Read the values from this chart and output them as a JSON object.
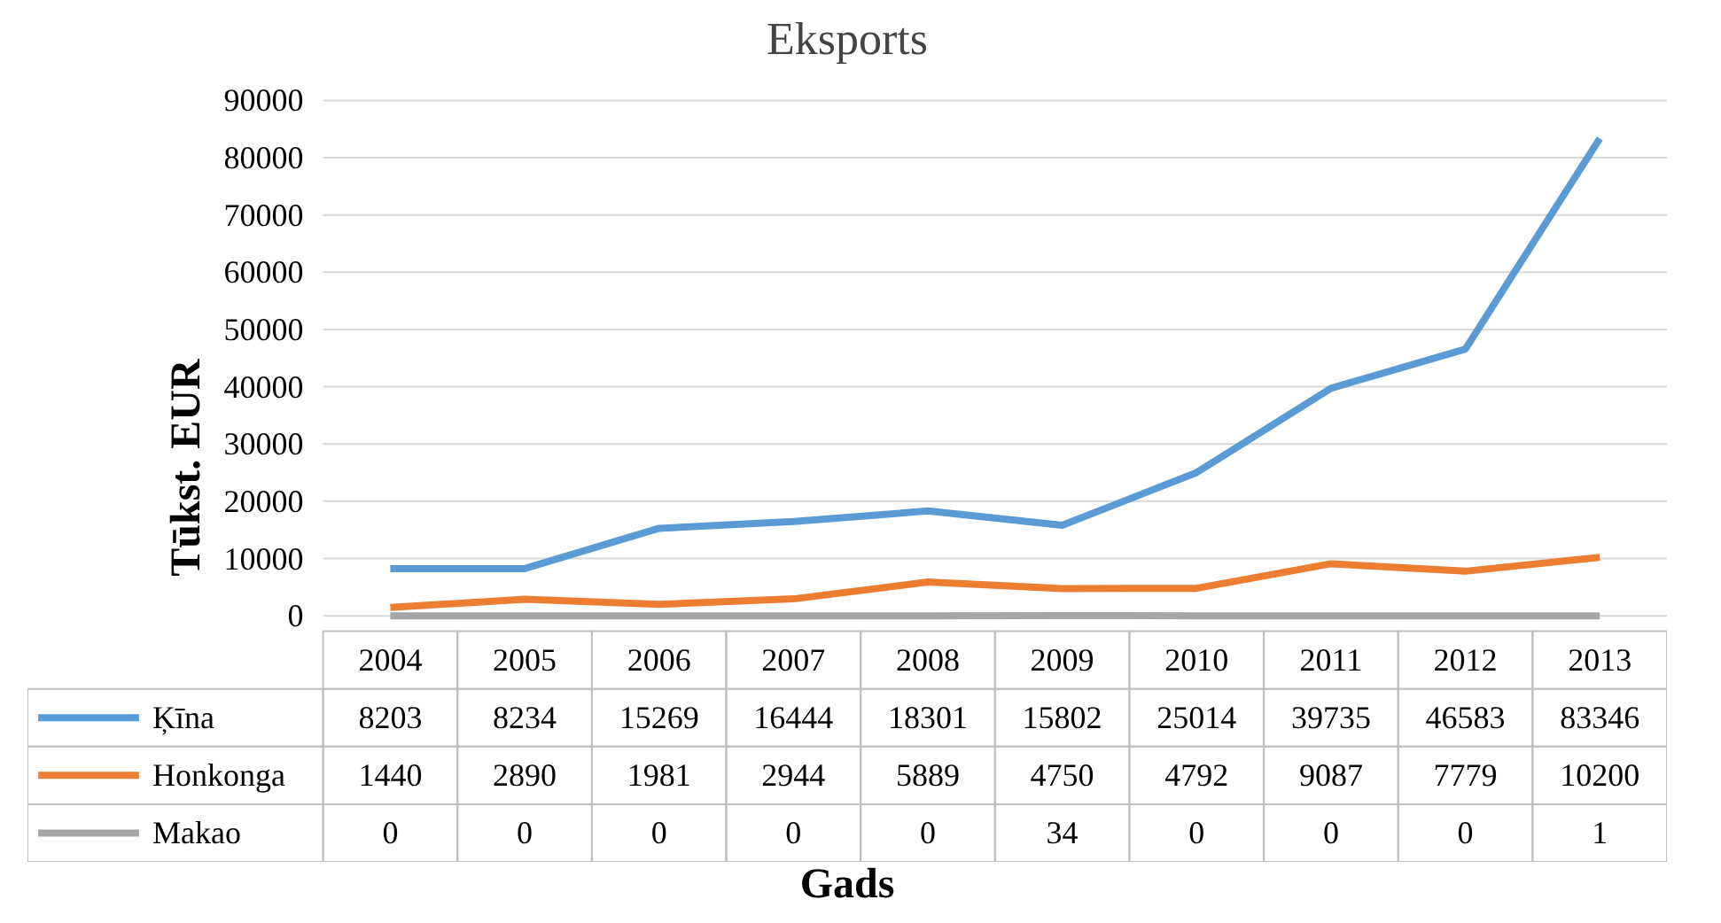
{
  "chart_data": {
    "type": "line",
    "title": "Eksports",
    "xlabel": "Gads",
    "ylabel": "Tūkst. EUR",
    "categories": [
      "2004",
      "2005",
      "2006",
      "2007",
      "2008",
      "2009",
      "2010",
      "2011",
      "2012",
      "2013"
    ],
    "series": [
      {
        "name": "Ķīna",
        "color": "#5b9bd5",
        "values": [
          8203,
          8234,
          15269,
          16444,
          18301,
          15802,
          25014,
          39735,
          46583,
          83346
        ]
      },
      {
        "name": "Honkonga",
        "color": "#ed7d31",
        "values": [
          1440,
          2890,
          1981,
          2944,
          5889,
          4750,
          4792,
          9087,
          7779,
          10200
        ]
      },
      {
        "name": "Makao",
        "color": "#a5a5a5",
        "values": [
          0,
          0,
          0,
          0,
          0,
          34,
          0,
          0,
          0,
          1
        ]
      }
    ],
    "ylim": [
      0,
      90000
    ],
    "yticks": [
      0,
      10000,
      20000,
      30000,
      40000,
      50000,
      60000,
      70000,
      80000,
      90000
    ],
    "grid": "y",
    "legend": "bottom",
    "data_labels": true,
    "marker": "none",
    "line_style": "solid"
  }
}
